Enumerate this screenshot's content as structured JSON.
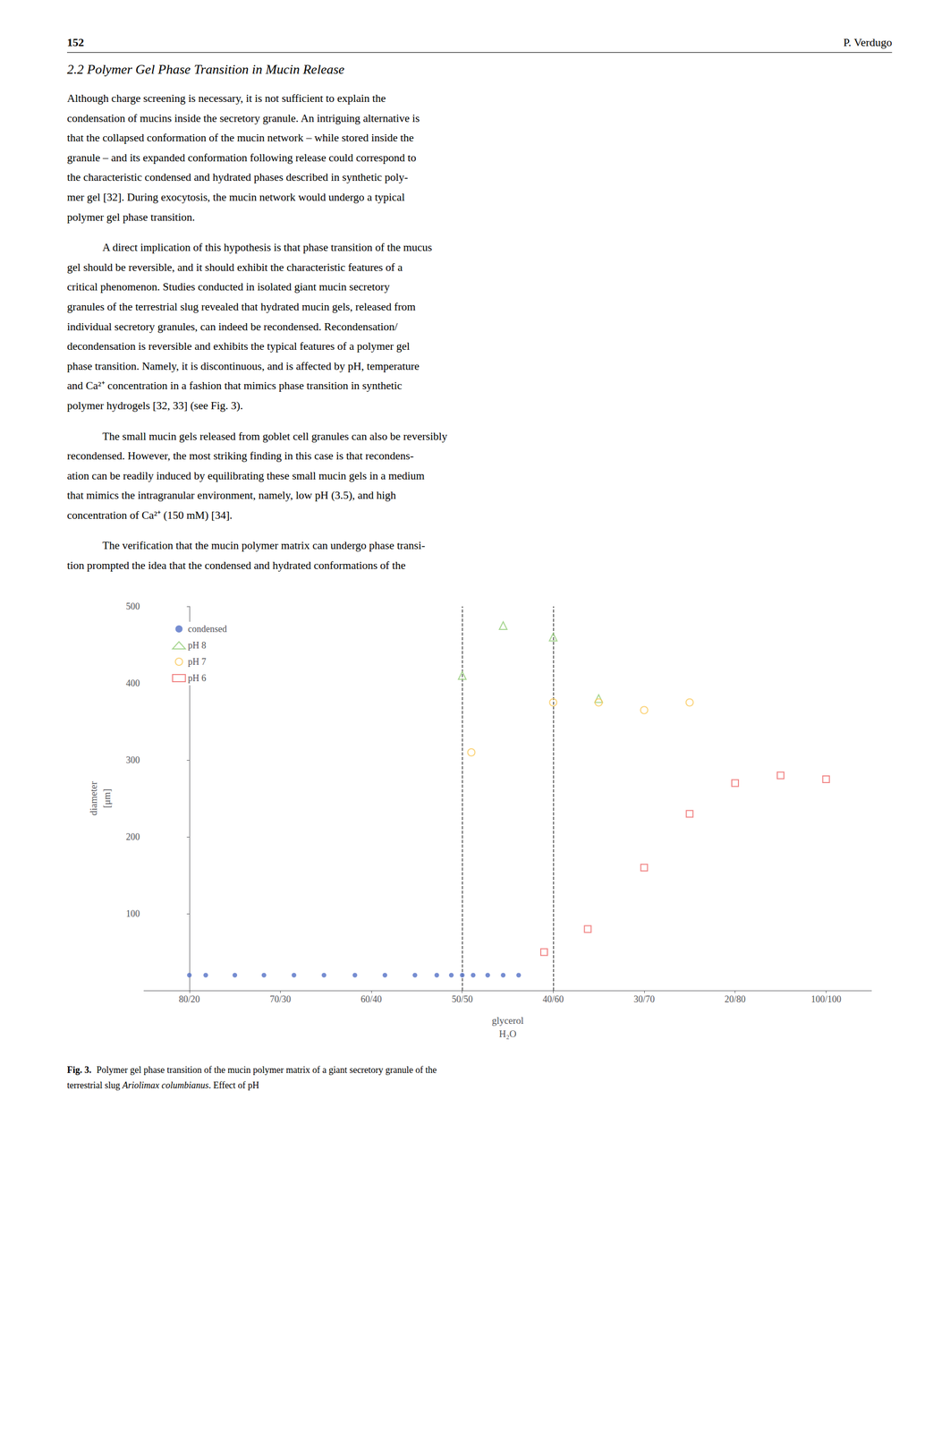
{
  "page": {
    "page_number": "152",
    "page_author": "P. Verdugo",
    "section_title": "2.2 Polymer Gel Phase Transition in Mucin Release",
    "body": [
      [
        "Although charge screening is necessary, it is not sufficient to explain the",
        "condensation of mucins inside the secretory granule. An intriguing alternative is",
        "that the collapsed conformation of the mucin network – while stored inside the",
        "granule – and its expanded conformation following release could correspond to",
        "the characteristic condensed and hydrated phases described in synthetic poly-",
        "mer gel [32]. During exocytosis, the mucin network would undergo a typical",
        "polymer gel phase transition."
      ],
      [
        "A direct implication of this hypothesis is that phase transition of the mucus",
        "gel should be reversible, and it should exhibit the characteristic features of a",
        "critical phenomenon. Studies conducted in isolated giant mucin secretory",
        "granules of the terrestrial slug revealed that hydrated mucin gels, released from",
        "individual secretory granules, can indeed be recondensed. Recondensation/",
        "decondensation is reversible and exhibits the typical features of a polymer gel",
        "phase transition. Namely, it is discontinuous, and is affected by pH, temperature",
        "and Ca²⁺ concentration in a fashion that mimics phase transition in synthetic",
        "polymer hydrogels [32, 33] (see Fig. 3)."
      ],
      [
        "The small mucin gels released from goblet cell granules can also be reversibly",
        "recondensed. However, the most striking finding in this case is that recondens-",
        "ation can be readily induced by equilibrating these small mucin gels in a medium",
        "that mimics the intragranular environment, namely, low pH (3.5), and high",
        "concentration of Ca²⁺ (150 mM) [34]."
      ],
      [
        "The verification that the mucin polymer matrix can undergo phase transi-",
        "tion prompted the idea that the condensed and hydrated conformations of the"
      ]
    ],
    "caption": [
      [
        {
          "text": "Fig. 3.",
          "style": "bold"
        },
        {
          "text": "Polymer gel phase transition of the mucin polymer matrix of a giant secretory granule of the",
          "style": "normal"
        }
      ],
      [
        {
          "text": "terrestrial slug ",
          "style": "normal"
        },
        {
          "text": "Ariolimax columbianus",
          "style": "italic"
        },
        {
          "text": ". Effect of pH",
          "style": "normal"
        }
      ]
    ]
  },
  "chart_data": {
    "type": "scatter",
    "xlabel": [
      "glycerol",
      "H₂O"
    ],
    "ylabel": [
      "diameter",
      "[μm]"
    ],
    "xlim": [
      -0.5,
      7.5
    ],
    "xticks": [
      {
        "value": 0,
        "label": "80/20"
      },
      {
        "value": 1,
        "label": "70/30"
      },
      {
        "value": 2,
        "label": "60/40"
      },
      {
        "value": 3,
        "label": "50/50"
      },
      {
        "value": 4,
        "label": "40/60"
      },
      {
        "value": 5,
        "label": "30/70"
      },
      {
        "value": 6,
        "label": "20/80"
      },
      {
        "value": 7,
        "label": "100/100"
      }
    ],
    "ylim": [
      0,
      500
    ],
    "yticks": [
      100,
      200,
      300,
      400,
      500
    ],
    "grid": false,
    "legend": "upper left",
    "vlines": [
      3,
      4
    ],
    "series": [
      {
        "name": "condensed",
        "marker": "circle",
        "x": [
          0,
          0.18,
          0.5,
          0.82,
          1.15,
          1.48,
          1.82,
          2.15,
          2.48,
          2.72,
          2.88,
          3.0,
          3.12,
          3.28,
          3.45,
          3.62
        ],
        "values": [
          20,
          20,
          20,
          20,
          20,
          20,
          20,
          20,
          20,
          20,
          20,
          20,
          20,
          20,
          20,
          20
        ]
      },
      {
        "name": "pH 8",
        "marker": "open_triangle",
        "x": [
          3.0,
          3.45,
          4.0,
          4.5
        ],
        "values": [
          410,
          475,
          460,
          380
        ]
      },
      {
        "name": "pH 7",
        "marker": "open_circle",
        "x": [
          3.1,
          4.0,
          4.5,
          5.0,
          5.5
        ],
        "values": [
          310,
          375,
          375,
          365,
          375
        ]
      },
      {
        "name": "pH 6",
        "marker": "open_square",
        "x": [
          3.9,
          4.38,
          5.0,
          5.5,
          6.0,
          6.5,
          7.0
        ],
        "values": [
          50,
          80,
          160,
          230,
          270,
          280,
          275
        ]
      }
    ]
  }
}
